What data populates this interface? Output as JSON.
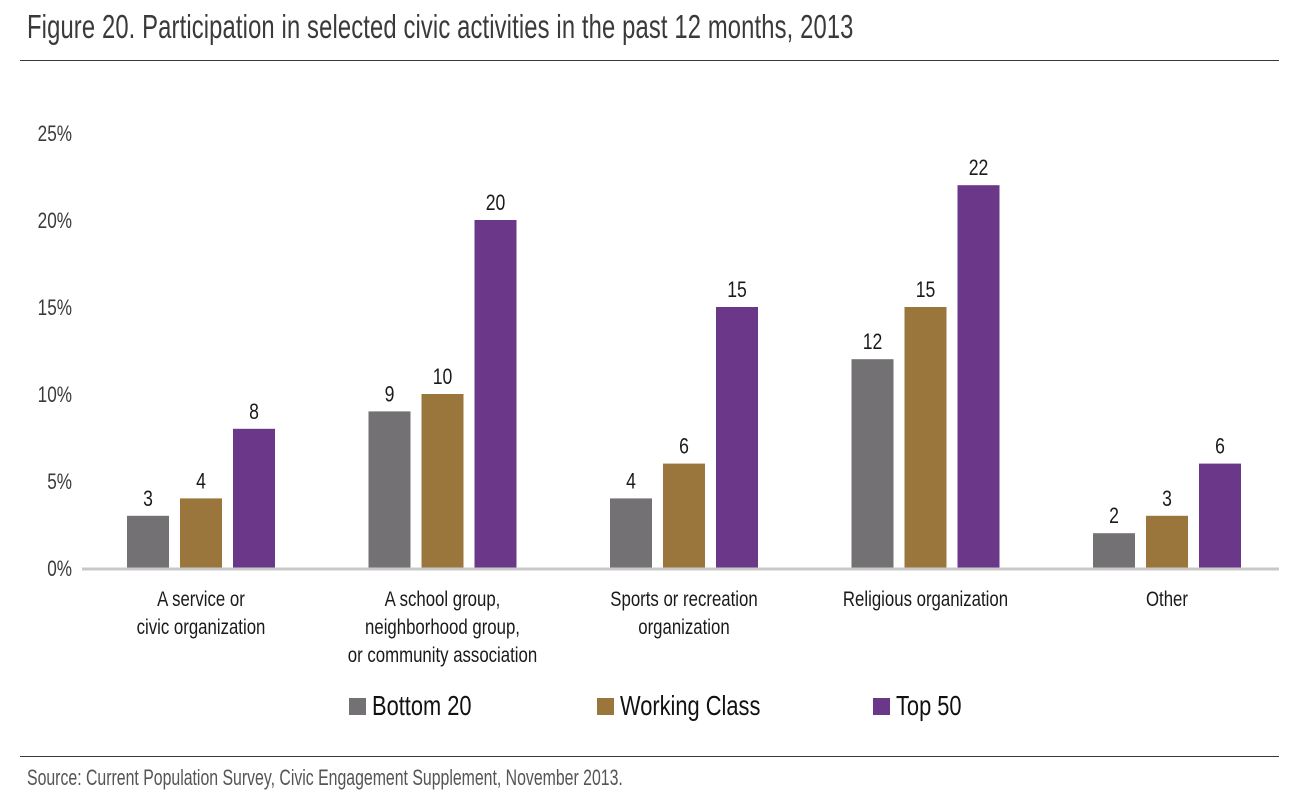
{
  "figure": {
    "title": "Figure 20. Participation in selected civic activities in the past 12 months, 2013",
    "source": "Source: Current Population Survey, Civic Engagement Supplement, November 2013."
  },
  "chart_data": {
    "type": "bar",
    "title": "Figure 20. Participation in selected civic activities in the past 12 months, 2013",
    "xlabel": "",
    "ylabel": "",
    "ylim": [
      0,
      25
    ],
    "yticks": [
      0,
      5,
      10,
      15,
      20,
      25
    ],
    "ytick_labels": [
      "0%",
      "5%",
      "10%",
      "15%",
      "20%",
      "25%"
    ],
    "grid": false,
    "legend_position": "bottom-center",
    "categories": [
      [
        "A service or",
        "civic organization"
      ],
      [
        "A school group,",
        "neighborhood group,",
        "or community association"
      ],
      [
        "Sports or recreation",
        "organization"
      ],
      [
        "Religious organization"
      ],
      [
        "Other"
      ]
    ],
    "series": [
      {
        "name": "Bottom 20",
        "color": "#737173",
        "values": [
          3,
          9,
          4,
          12,
          2
        ]
      },
      {
        "name": "Working Class",
        "color": "#9a763c",
        "values": [
          4,
          10,
          6,
          15,
          3
        ]
      },
      {
        "name": "Top 50",
        "color": "#6b3788",
        "values": [
          8,
          20,
          15,
          22,
          6
        ]
      }
    ],
    "axis_color": "#c8c8c8"
  }
}
